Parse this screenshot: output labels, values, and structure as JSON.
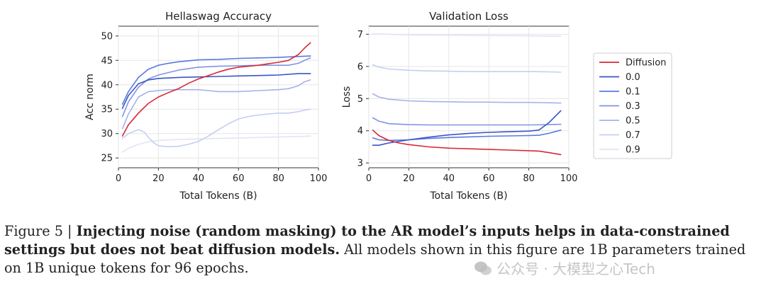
{
  "colors": {
    "Diffusion": "#d62839",
    "0.0": "#3a55c6",
    "0.1": "#5b78dd",
    "0.3": "#7f95e4",
    "0.5": "#a3b3ea",
    "0.7": "#c4cff1",
    "0.9": "#e0e5f6"
  },
  "legend": {
    "entries": [
      "Diffusion",
      "0.0",
      "0.1",
      "0.3",
      "0.5",
      "0.7",
      "0.9"
    ],
    "placement": "right"
  },
  "chart_data": [
    {
      "type": "line",
      "title": "Hellaswag Accuracy",
      "xlabel": "Total Tokens (B)",
      "ylabel": "Acc norm",
      "xlim": [
        0,
        100
      ],
      "ylim": [
        23,
        52
      ],
      "xticks": [
        0,
        20,
        40,
        60,
        80,
        100
      ],
      "yticks": [
        25,
        30,
        35,
        40,
        45,
        50
      ],
      "grid": true,
      "series": [
        {
          "name": "Diffusion",
          "x": [
            2,
            5,
            10,
            15,
            20,
            25,
            30,
            35,
            40,
            45,
            50,
            55,
            60,
            65,
            70,
            75,
            80,
            85,
            90,
            93,
            96
          ],
          "y": [
            29.5,
            31.8,
            34.2,
            36.2,
            37.5,
            38.4,
            39.2,
            40.3,
            41.2,
            41.9,
            42.6,
            43.2,
            43.6,
            43.8,
            44.0,
            44.3,
            44.6,
            45.0,
            46.2,
            47.5,
            48.6
          ]
        },
        {
          "name": "0.0",
          "x": [
            2,
            5,
            10,
            15,
            20,
            30,
            40,
            50,
            60,
            70,
            80,
            90,
            96
          ],
          "y": [
            35.2,
            37.8,
            40.2,
            41.0,
            41.3,
            41.5,
            41.6,
            41.7,
            41.8,
            41.9,
            42.0,
            42.3,
            42.3
          ]
        },
        {
          "name": "0.1",
          "x": [
            2,
            5,
            10,
            15,
            20,
            25,
            30,
            40,
            50,
            60,
            70,
            80,
            90,
            96
          ],
          "y": [
            36.0,
            38.6,
            41.5,
            43.2,
            44.0,
            44.4,
            44.7,
            45.1,
            45.2,
            45.4,
            45.5,
            45.6,
            45.8,
            45.9
          ]
        },
        {
          "name": "0.3",
          "x": [
            2,
            5,
            10,
            15,
            20,
            25,
            30,
            40,
            50,
            60,
            70,
            80,
            85,
            90,
            93,
            96
          ],
          "y": [
            33.5,
            36.5,
            39.5,
            41.2,
            42.0,
            42.5,
            43.0,
            43.6,
            43.8,
            43.9,
            44.0,
            44.0,
            44.0,
            44.4,
            45.0,
            45.5
          ]
        },
        {
          "name": "0.5",
          "x": [
            2,
            5,
            10,
            15,
            20,
            25,
            30,
            40,
            45,
            50,
            60,
            70,
            80,
            85,
            90,
            93,
            96
          ],
          "y": [
            31.0,
            34.0,
            37.5,
            38.6,
            38.8,
            39.0,
            39.0,
            39.0,
            38.8,
            38.6,
            38.6,
            38.8,
            39.0,
            39.2,
            39.8,
            40.6,
            41.0
          ]
        },
        {
          "name": "0.7",
          "x": [
            2,
            5,
            10,
            13,
            15,
            18,
            20,
            25,
            30,
            35,
            40,
            45,
            50,
            55,
            60,
            65,
            70,
            75,
            80,
            85,
            90,
            93,
            96
          ],
          "y": [
            29.0,
            30.0,
            30.8,
            30.3,
            29.2,
            28.0,
            27.5,
            27.3,
            27.4,
            27.8,
            28.4,
            29.5,
            30.8,
            32.0,
            33.0,
            33.5,
            33.8,
            34.0,
            34.2,
            34.2,
            34.5,
            34.8,
            35.0
          ]
        },
        {
          "name": "0.9",
          "x": [
            2,
            5,
            10,
            15,
            20,
            30,
            40,
            50,
            60,
            70,
            80,
            90,
            96
          ],
          "y": [
            26.2,
            27.0,
            27.8,
            28.3,
            28.6,
            28.8,
            28.9,
            29.0,
            29.1,
            29.2,
            29.3,
            29.4,
            29.5
          ]
        }
      ]
    },
    {
      "type": "line",
      "title": "Validation Loss",
      "xlabel": "Total Tokens (B)",
      "ylabel": "Loss",
      "xlim": [
        0,
        100
      ],
      "ylim": [
        2.85,
        7.25
      ],
      "xticks": [
        0,
        20,
        40,
        60,
        80,
        100
      ],
      "yticks": [
        3,
        4,
        5,
        6,
        7
      ],
      "grid": true,
      "series": [
        {
          "name": "Diffusion",
          "x": [
            2,
            5,
            10,
            15,
            20,
            30,
            40,
            50,
            60,
            70,
            80,
            85,
            90,
            96
          ],
          "y": [
            4.02,
            3.85,
            3.7,
            3.62,
            3.57,
            3.5,
            3.46,
            3.44,
            3.42,
            3.4,
            3.38,
            3.37,
            3.32,
            3.26
          ]
        },
        {
          "name": "0.0",
          "x": [
            2,
            5,
            10,
            20,
            30,
            40,
            50,
            60,
            70,
            80,
            85,
            90,
            96
          ],
          "y": [
            3.55,
            3.55,
            3.62,
            3.72,
            3.8,
            3.87,
            3.92,
            3.95,
            3.97,
            3.99,
            4.02,
            4.25,
            4.62
          ]
        },
        {
          "name": "0.1",
          "x": [
            2,
            5,
            10,
            20,
            30,
            40,
            50,
            60,
            70,
            80,
            85,
            90,
            96
          ],
          "y": [
            3.78,
            3.72,
            3.7,
            3.72,
            3.76,
            3.79,
            3.81,
            3.83,
            3.84,
            3.85,
            3.86,
            3.92,
            4.02
          ]
        },
        {
          "name": "0.3",
          "x": [
            2,
            5,
            10,
            20,
            30,
            40,
            50,
            60,
            70,
            80,
            90,
            96
          ],
          "y": [
            4.4,
            4.3,
            4.22,
            4.19,
            4.18,
            4.18,
            4.18,
            4.18,
            4.18,
            4.18,
            4.19,
            4.2
          ]
        },
        {
          "name": "0.5",
          "x": [
            2,
            5,
            10,
            20,
            30,
            40,
            50,
            60,
            70,
            80,
            90,
            96
          ],
          "y": [
            5.15,
            5.05,
            4.98,
            4.93,
            4.91,
            4.9,
            4.89,
            4.89,
            4.88,
            4.88,
            4.87,
            4.86
          ]
        },
        {
          "name": "0.7",
          "x": [
            2,
            5,
            10,
            20,
            30,
            40,
            50,
            60,
            70,
            80,
            90,
            96
          ],
          "y": [
            6.05,
            5.98,
            5.92,
            5.88,
            5.86,
            5.85,
            5.84,
            5.84,
            5.84,
            5.84,
            5.83,
            5.82
          ]
        },
        {
          "name": "0.9",
          "x": [
            2,
            10,
            20,
            40,
            60,
            80,
            96
          ],
          "y": [
            7.02,
            7.0,
            6.98,
            6.97,
            6.96,
            6.95,
            6.94
          ]
        }
      ]
    }
  ],
  "caption": {
    "prefix": "Figure 5 | ",
    "bold": "Injecting noise (random masking) to the AR model’s inputs helps in data-constrained settings but does not beat diffusion models.",
    "rest": " All models shown in this figure are 1B parameters trained on 1B unique tokens for 96 epochs."
  },
  "watermark": {
    "text": "公众号 · 大模型之心Tech",
    "icon": "wechat-icon"
  }
}
